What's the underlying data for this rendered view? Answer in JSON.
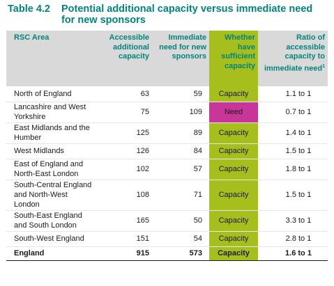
{
  "table": {
    "number": "Table 4.2",
    "title": "Potential additional capacity versus immediate need for new sponsors",
    "headers": {
      "area": "RSC Area",
      "capacity": "Accessible additional capacity",
      "need": "Immediate need for new sponsors",
      "sufficient": "Whether have sufficient capacity",
      "ratio": "Ratio of accessible capacity to immediate need",
      "ratio_note": "1"
    },
    "rows": [
      {
        "area": "North of England",
        "capacity": "63",
        "need": "59",
        "sufficient": "Capacity",
        "ratio": "1.1 to 1"
      },
      {
        "area": "Lancashire and West Yorkshire",
        "capacity": "75",
        "need": "109",
        "sufficient": "Need",
        "ratio": "0.7 to 1"
      },
      {
        "area": "East Midlands and the Humber",
        "capacity": "125",
        "need": "89",
        "sufficient": "Capacity",
        "ratio": "1.4 to 1"
      },
      {
        "area": "West Midlands",
        "capacity": "126",
        "need": "84",
        "sufficient": "Capacity",
        "ratio": "1.5 to 1"
      },
      {
        "area": "East of England and North-East London",
        "capacity": "102",
        "need": "57",
        "sufficient": "Capacity",
        "ratio": "1.8 to 1"
      },
      {
        "area": "South-Central England and North-West London",
        "capacity": "108",
        "need": "71",
        "sufficient": "Capacity",
        "ratio": "1.5 to 1"
      },
      {
        "area": "South-East England and South London",
        "capacity": "165",
        "need": "50",
        "sufficient": "Capacity",
        "ratio": "3.3 to 1"
      },
      {
        "area": "South-West England",
        "capacity": "151",
        "need": "54",
        "sufficient": "Capacity",
        "ratio": "2.8 to 1"
      }
    ],
    "total": {
      "area": "England",
      "capacity": "915",
      "need": "573",
      "sufficient": "Capacity",
      "ratio": "1.6 to 1"
    }
  },
  "colors": {
    "title": "#00857c",
    "header_bg": "#d9d9d9",
    "capacity": "#a6bf1c",
    "need": "#c8369a"
  }
}
